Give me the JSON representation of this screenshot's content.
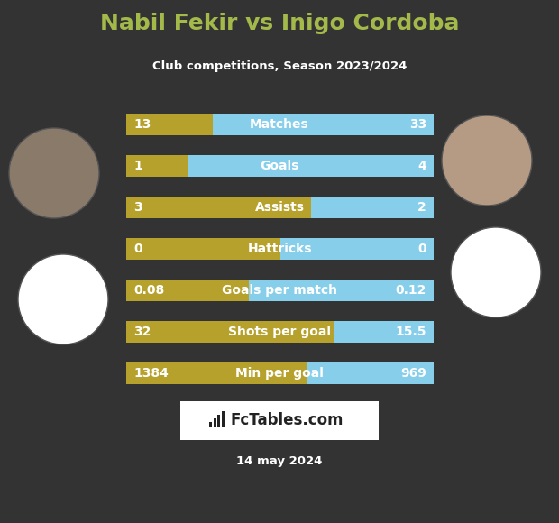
{
  "chart_data": {
    "type": "bar",
    "orientation": "horizontal",
    "title": "Nabil Fekir vs Inigo Cordoba",
    "subtitle": "Club competitions, Season 2023/2024",
    "categories": [
      "Matches",
      "Goals",
      "Assists",
      "Hattricks",
      "Goals per match",
      "Shots per goal",
      "Min per goal"
    ],
    "series": [
      {
        "color": "#b5a12b",
        "values": [
          13,
          1,
          3,
          0,
          0.08,
          32,
          1384
        ]
      },
      {
        "color": "#87ceeb",
        "values": [
          33,
          4,
          2,
          0,
          0.12,
          15.5,
          969
        ]
      }
    ],
    "data_labels": true,
    "tick_labels": false,
    "annotations": [
      "FcTables.com",
      "14 may 2024"
    ]
  }
}
